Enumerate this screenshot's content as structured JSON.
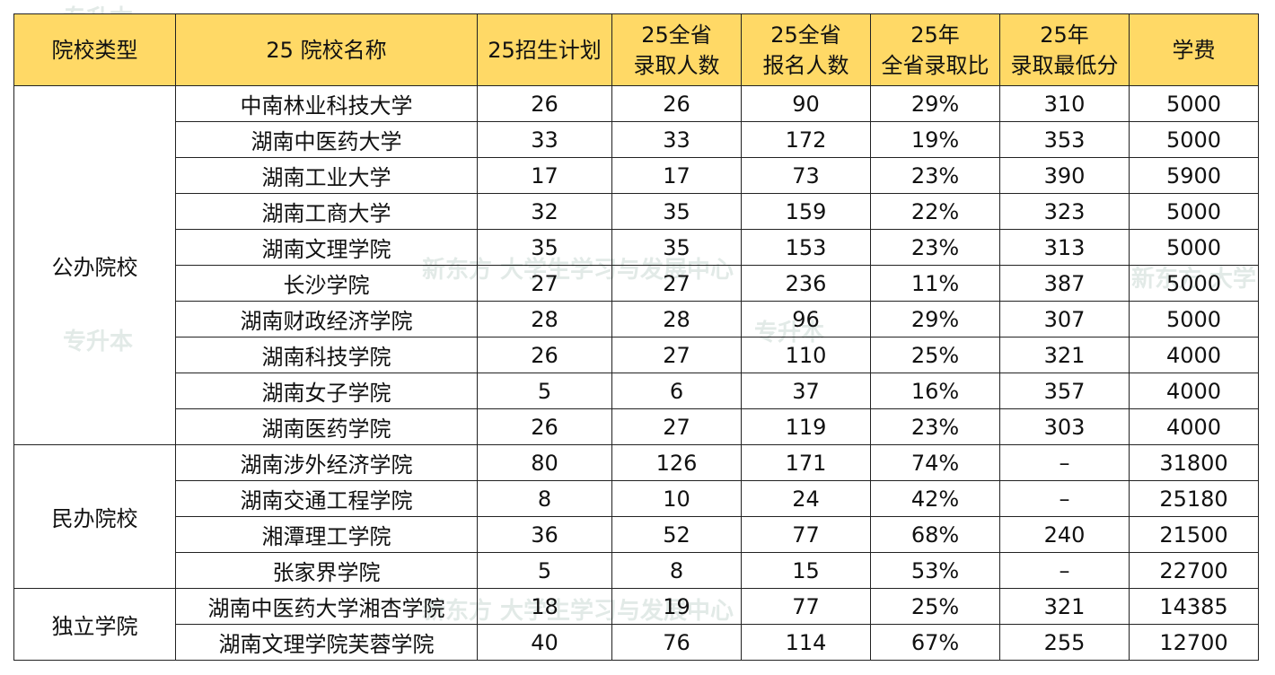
{
  "headers": [
    "院校类型",
    "25 院校名称",
    "25招生计划",
    "25全省\n录取人数",
    "25全省\n报名人数",
    "25年\n全省录取比",
    "25年\n录取最低分",
    "学费"
  ],
  "groups": [
    {
      "type": "公办院校",
      "rows": [
        [
          "中南林业科技大学",
          "26",
          "26",
          "90",
          "29%",
          "310",
          "5000"
        ],
        [
          "湖南中医药大学",
          "33",
          "33",
          "172",
          "19%",
          "353",
          "5000"
        ],
        [
          "湖南工业大学",
          "17",
          "17",
          "73",
          "23%",
          "390",
          "5900"
        ],
        [
          "湖南工商大学",
          "32",
          "35",
          "159",
          "22%",
          "323",
          "5000"
        ],
        [
          "湖南文理学院",
          "35",
          "35",
          "153",
          "23%",
          "313",
          "5000"
        ],
        [
          "长沙学院",
          "27",
          "27",
          "236",
          "11%",
          "387",
          "5000"
        ],
        [
          "湖南财政经济学院",
          "28",
          "28",
          "96",
          "29%",
          "307",
          "5000"
        ],
        [
          "湖南科技学院",
          "26",
          "27",
          "110",
          "25%",
          "321",
          "4000"
        ],
        [
          "湖南女子学院",
          "5",
          "6",
          "37",
          "16%",
          "357",
          "4000"
        ],
        [
          "湖南医药学院",
          "26",
          "27",
          "119",
          "23%",
          "303",
          "4000"
        ]
      ]
    },
    {
      "type": "民办院校",
      "rows": [
        [
          "湖南涉外经济学院",
          "80",
          "126",
          "171",
          "74%",
          "–",
          "31800"
        ],
        [
          "湖南交通工程学院",
          "8",
          "10",
          "24",
          "42%",
          "–",
          "25180"
        ],
        [
          "湘潭理工学院",
          "36",
          "52",
          "77",
          "68%",
          "240",
          "21500"
        ],
        [
          "张家界学院",
          "5",
          "8",
          "15",
          "53%",
          "–",
          "22700"
        ]
      ]
    },
    {
      "type": "独立学院",
      "rows": [
        [
          "湖南中医药大学湘杏学院",
          "18",
          "19",
          "77",
          "25%",
          "321",
          "14385"
        ],
        [
          "湖南文理学院芙蓉学院",
          "40",
          "76",
          "114",
          "67%",
          "255",
          "12700"
        ]
      ]
    }
  ]
}
